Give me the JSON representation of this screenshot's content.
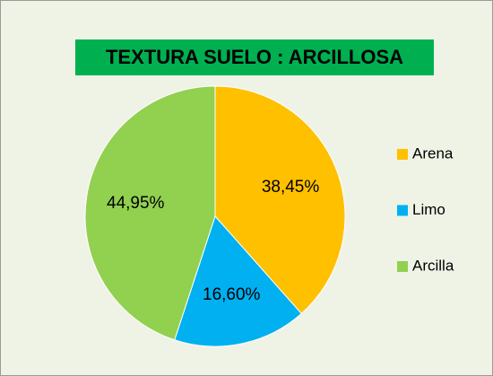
{
  "chart_data": {
    "type": "pie",
    "title": "TEXTURA SUELO : ARCILLOSA",
    "categories": [
      "Arena",
      "Limo",
      "Arcilla"
    ],
    "values": [
      38.45,
      16.6,
      44.95
    ],
    "value_labels": [
      "38,45%",
      "16,60%",
      "44,95%"
    ],
    "colors": [
      "#ffc000",
      "#00b0f0",
      "#92d050"
    ],
    "legend": "right"
  }
}
